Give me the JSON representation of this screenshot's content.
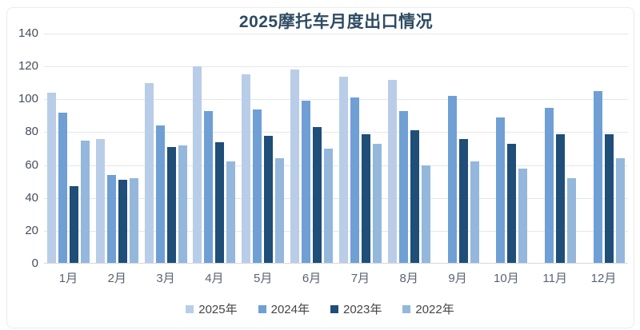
{
  "chart_data": {
    "type": "bar",
    "title": "2025摩托车月度出口情况",
    "categories": [
      "1月",
      "2月",
      "3月",
      "4月",
      "5月",
      "6月",
      "7月",
      "8月",
      "9月",
      "10月",
      "11月",
      "12月"
    ],
    "series": [
      {
        "name": "2025年",
        "color": "#B9CDE8",
        "values": [
          104,
          76,
          110,
          120,
          115,
          118,
          114,
          112,
          null,
          null,
          null,
          null
        ]
      },
      {
        "name": "2024年",
        "color": "#6F9FD5",
        "values": [
          92,
          54,
          84,
          93,
          94,
          99,
          101,
          93,
          102,
          89,
          95,
          105
        ]
      },
      {
        "name": "2023年",
        "color": "#1F4E79",
        "values": [
          47,
          51,
          71,
          74,
          78,
          83,
          79,
          81,
          76,
          73,
          79,
          79
        ]
      },
      {
        "name": "2022年",
        "color": "#94B7DC",
        "values": [
          75,
          52,
          72,
          62,
          64,
          70,
          73,
          60,
          62,
          58,
          52,
          64
        ]
      }
    ],
    "xlabel": "",
    "ylabel": "",
    "ylim": [
      0,
      140
    ],
    "yticks": [
      0,
      20,
      40,
      60,
      80,
      100,
      120,
      140
    ],
    "grid": true,
    "legend_position": "bottom"
  },
  "style": {
    "title_color": "#2E4B63",
    "ytick_color": "#454E5E",
    "xtick_color": "#596273",
    "legend_text_color": "#454545",
    "grid_color": "#E4E7EB",
    "axis_line_color": "#D5D8DC",
    "card_border_color": "#EBEBEB"
  }
}
